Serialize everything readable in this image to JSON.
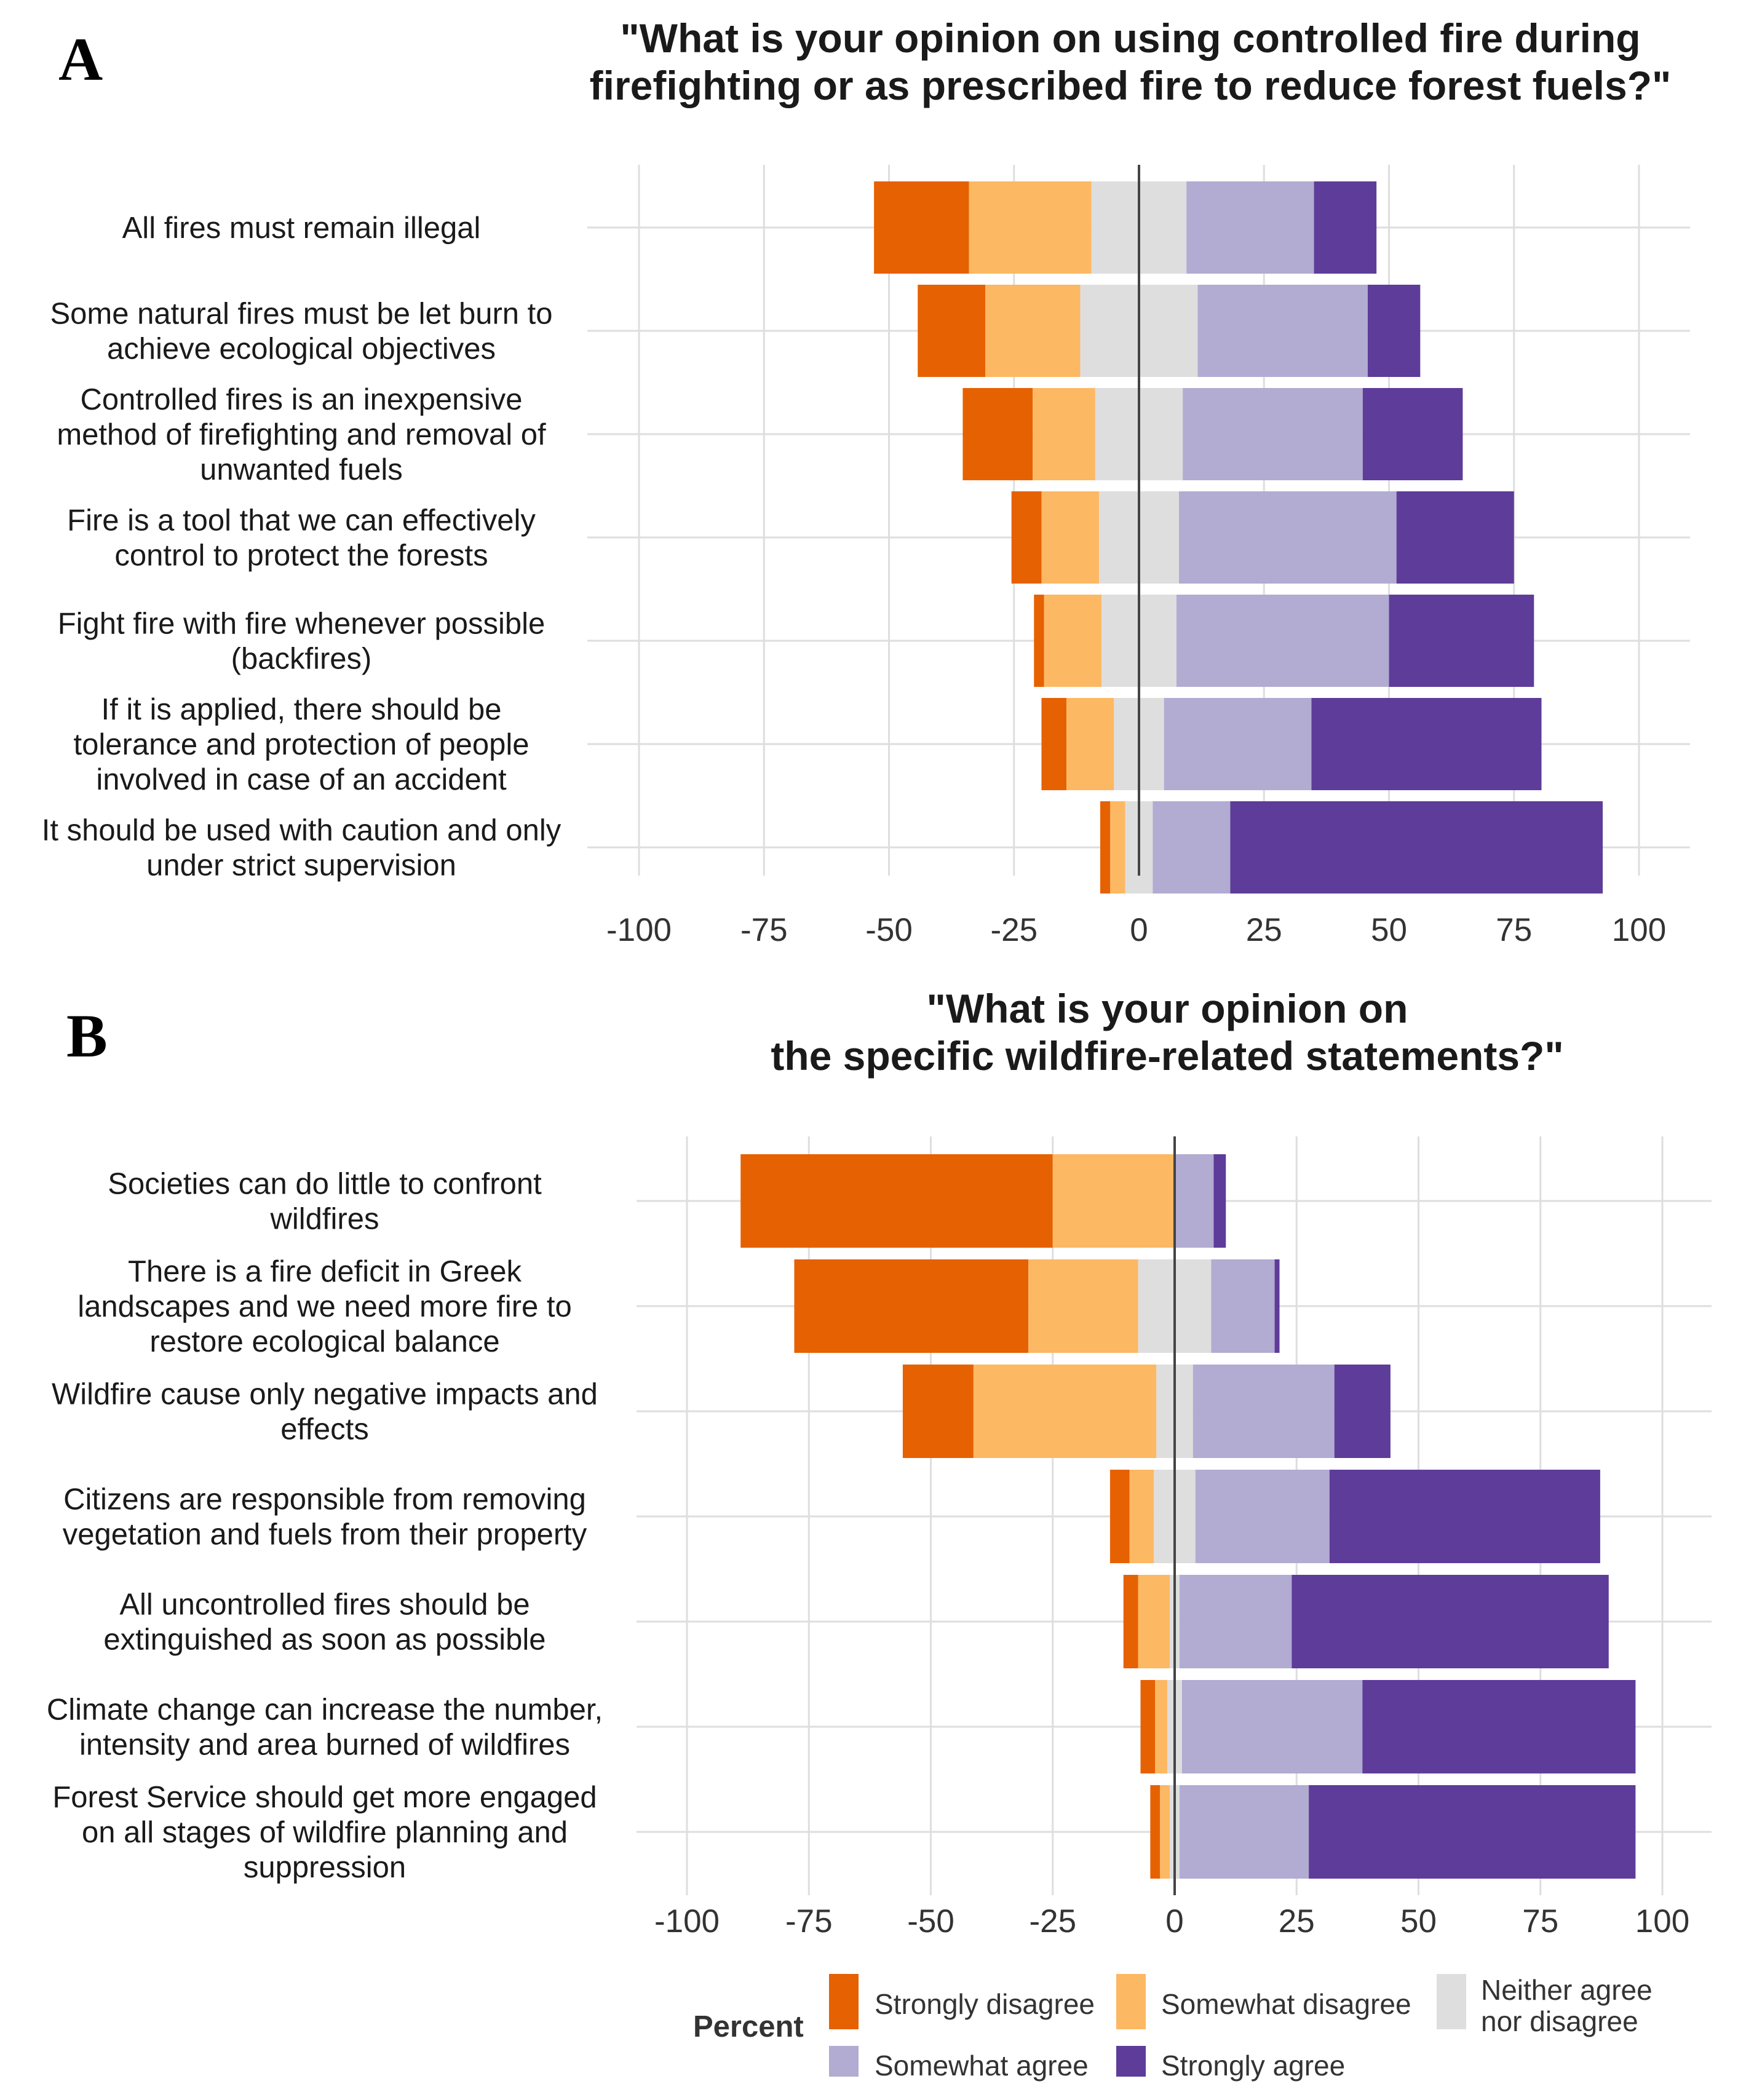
{
  "chart_data": [
    {
      "panel": "A",
      "type": "bar",
      "orientation": "horizontal-diverging",
      "title_lines": [
        "\"What is your opinion on using controlled fire during",
        "firefighting or as prescribed fire to reduce forest fuels?\""
      ],
      "categories": [
        [
          "All fires must remain illegal"
        ],
        [
          "Some natural fires must be let burn to",
          "achieve ecological objectives"
        ],
        [
          "Controlled fires is an inexpensive",
          "method of firefighting and removal of",
          "unwanted fuels"
        ],
        [
          "Fire is a tool that we can effectively",
          "control to protect the forests"
        ],
        [
          "Fight fire with fire whenever possible",
          "(backfires)"
        ],
        [
          "If it is applied, there should be",
          "tolerance and protection of people",
          "involved in case of an accident"
        ],
        [
          "It should be used with caution and only",
          "under strict supervision"
        ]
      ],
      "series": [
        {
          "name": "Strongly disagree",
          "values": [
            19,
            13.5,
            14,
            6,
            2,
            5,
            2
          ]
        },
        {
          "name": "Somewhat disagree",
          "values": [
            24.5,
            19,
            12.5,
            11.5,
            11.5,
            9.5,
            3
          ]
        },
        {
          "name": "Neither agree nor disagree",
          "values": [
            19,
            23.5,
            17.5,
            16,
            15,
            10,
            5.5
          ]
        },
        {
          "name": "Somewhat agree",
          "values": [
            25.5,
            34,
            36,
            43.5,
            42.5,
            29.5,
            15.5
          ]
        },
        {
          "name": "Strongly agree",
          "values": [
            12.5,
            10.5,
            20,
            23.5,
            29,
            46,
            74.5
          ]
        }
      ],
      "xticks": [
        -100,
        -75,
        -50,
        -25,
        0,
        25,
        50,
        75,
        100
      ],
      "xlim": [
        -100,
        100
      ]
    },
    {
      "panel": "B",
      "type": "bar",
      "orientation": "horizontal-diverging",
      "title_lines": [
        "\"What is your opinion on",
        "the specific wildfire-related statements?\""
      ],
      "categories": [
        [
          "Societies can do little to confront",
          "wildfires"
        ],
        [
          "There is a fire deficit in Greek",
          "landscapes and we need more fire to",
          "restore ecological balance"
        ],
        [
          "Wildfire cause only negative impacts and",
          "effects"
        ],
        [
          "Citizens are responsible from removing",
          "vegetation and fuels from their property"
        ],
        [
          "All uncontrolled fires should be",
          "extinguished as soon as possible"
        ],
        [
          "Climate change can increase the number,",
          "intensity and area burned of wildfires"
        ],
        [
          "Forest Service should get more engaged",
          "on all stages of wildfire planning and",
          "suppression"
        ]
      ],
      "series": [
        {
          "name": "Strongly disagree",
          "values": [
            64,
            48,
            14.5,
            4,
            3,
            3,
            2
          ]
        },
        {
          "name": "Somewhat disagree",
          "values": [
            25,
            22.5,
            37.5,
            5,
            6.5,
            2.5,
            2
          ]
        },
        {
          "name": "Neither agree nor disagree",
          "values": [
            0,
            15,
            7.5,
            8.5,
            2,
            3,
            2
          ]
        },
        {
          "name": "Somewhat agree",
          "values": [
            8,
            13,
            29,
            27.5,
            23,
            37,
            26.5
          ]
        },
        {
          "name": "Strongly agree",
          "values": [
            2.5,
            1,
            11.5,
            55.5,
            65,
            56,
            67
          ]
        }
      ],
      "xticks": [
        -100,
        -75,
        -50,
        -25,
        0,
        25,
        50,
        75,
        100
      ],
      "xlim": [
        -100,
        100
      ]
    }
  ],
  "panel_letters": [
    "A",
    "B"
  ],
  "legend": {
    "title": "Percent",
    "items": [
      {
        "label_lines": [
          "Strongly disagree"
        ]
      },
      {
        "label_lines": [
          "Somewhat disagree"
        ]
      },
      {
        "label_lines": [
          "Neither agree",
          "nor disagree"
        ]
      },
      {
        "label_lines": [
          "Somewhat agree"
        ]
      },
      {
        "label_lines": [
          "Strongly agree"
        ]
      }
    ]
  },
  "colors": {
    "Strongly disagree": "#e66101",
    "Somewhat disagree": "#fdb863",
    "Neither agree nor disagree": "#dedede",
    "Somewhat agree": "#b2abd2",
    "Strongly agree": "#5e3c99"
  }
}
